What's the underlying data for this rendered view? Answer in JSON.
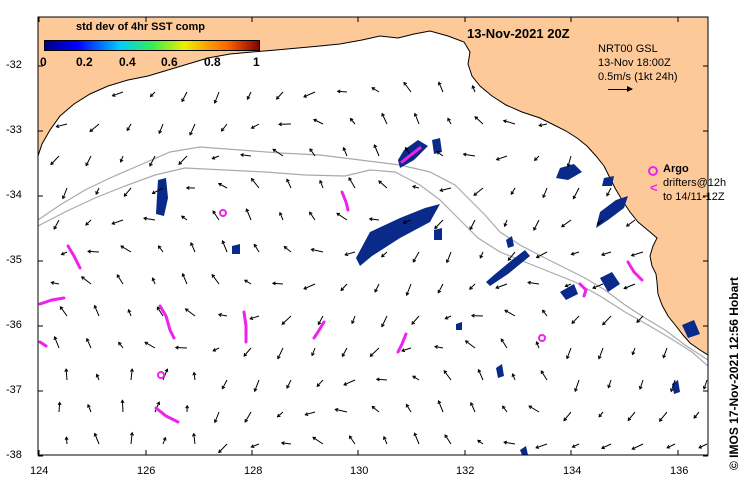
{
  "title": "13-Nov-2021 20Z",
  "colorbar": {
    "title": "std dev of 4hr SST comp",
    "ticks": [
      "0",
      "0.2",
      "0.4",
      "0.6",
      "0.8",
      "1"
    ]
  },
  "current_info": {
    "line1": "NRT00 GSL",
    "line2": "13-Nov 18:00Z",
    "line3": "0.5m/s (1kt 24h)"
  },
  "argo_legend": {
    "label": "Argo",
    "drifters_line1": "drifters@12h",
    "drifters_line2": "to 14/11-12Z"
  },
  "credit": "© IMOS 17-Nov-2021 12:56 Hobart",
  "axes": {
    "lon_ticks": [
      "124",
      "126",
      "128",
      "130",
      "132",
      "134",
      "136"
    ],
    "lat_ticks": [
      "-32",
      "-33",
      "-34",
      "-35",
      "-36",
      "-37",
      "-38"
    ],
    "lon_range": [
      124,
      136.6
    ],
    "lat_range": [
      -31.45,
      -38.1
    ]
  },
  "colors": {
    "land": "#fdc999",
    "ocean": "#ffffff",
    "drifter": "#ee22ee",
    "sst_patch": "#0a2a8a",
    "bathymetry": "#aaaaaa"
  }
}
